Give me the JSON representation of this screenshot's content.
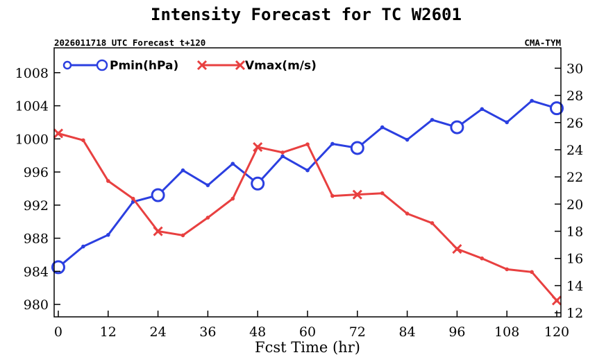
{
  "chart_data": {
    "type": "line",
    "title": "Intensity Forecast for TC W2601",
    "subtitle_left": "2026011718 UTC Forecast t+120",
    "subtitle_right": "CMA-TYM",
    "xlabel": "Fcst Time (hr)",
    "x": [
      0,
      6,
      12,
      18,
      24,
      30,
      36,
      42,
      48,
      54,
      60,
      66,
      72,
      78,
      84,
      90,
      96,
      102,
      108,
      114,
      120
    ],
    "xlim": [
      -1,
      121
    ],
    "xticks": [
      0,
      12,
      24,
      36,
      48,
      60,
      72,
      84,
      96,
      108,
      120
    ],
    "ylim_left": [
      978.5,
      1011
    ],
    "yticks_left": [
      980,
      984,
      988,
      992,
      996,
      1000,
      1004,
      1008
    ],
    "ylim_right": [
      11.7,
      31.5
    ],
    "yticks_right": [
      12,
      14,
      16,
      18,
      20,
      22,
      24,
      26,
      28,
      30
    ],
    "series": [
      {
        "name": "Pmin(hPa)",
        "axis": "left",
        "color": "#2b3fe0",
        "marker": "circle",
        "values": [
          984.5,
          987.0,
          988.4,
          992.4,
          993.2,
          996.2,
          994.4,
          997.0,
          994.6,
          997.9,
          996.2,
          999.4,
          998.9,
          1001.4,
          999.9,
          1002.3,
          1001.4,
          1003.6,
          1002.0,
          1004.6,
          1003.7
        ],
        "marker_x": [
          0,
          24,
          48,
          72,
          96,
          120
        ]
      },
      {
        "name": "Vmax(m/s)",
        "axis": "right",
        "color": "#e84040",
        "marker": "x",
        "values": [
          25.2,
          24.7,
          21.7,
          20.4,
          18.0,
          17.7,
          19.0,
          20.4,
          24.2,
          23.8,
          24.4,
          20.6,
          20.7,
          20.8,
          19.3,
          18.6,
          16.7,
          16.0,
          15.2,
          15.0,
          12.9
        ],
        "marker_x": [
          0,
          24,
          48,
          72,
          96,
          120
        ]
      }
    ]
  }
}
